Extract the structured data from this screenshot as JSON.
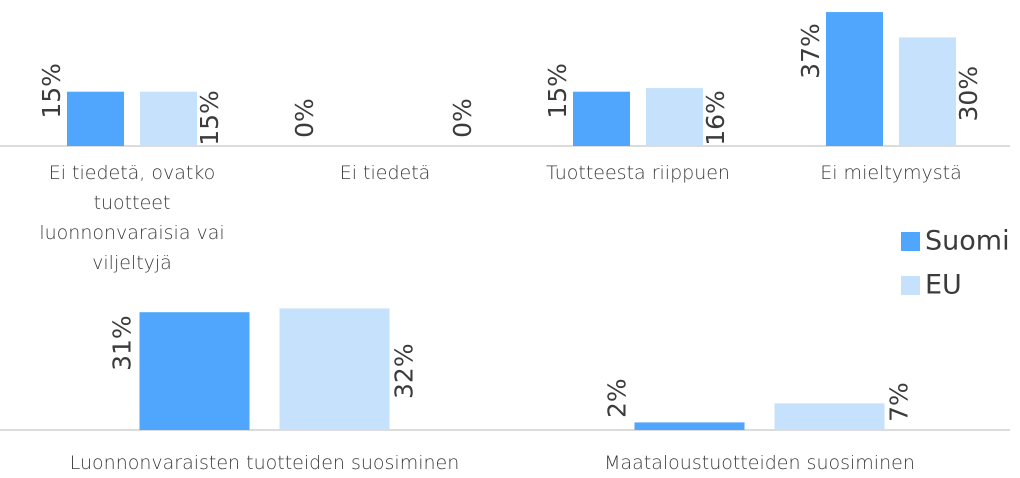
{
  "chart_data": [
    {
      "type": "bar",
      "categories": [
        "Ei tiedetä, ovatko tuotteet luonnonvaraisia vai viljeltyjä",
        "Ei tiedetä",
        "Tuotteesta riippuen",
        "Ei mieltymystä"
      ],
      "series": [
        {
          "name": "Suomi",
          "color": "#4fa6fc",
          "values": [
            15,
            0,
            15,
            37
          ],
          "value_labels": [
            "15%",
            "0%",
            "15%",
            "37%"
          ]
        },
        {
          "name": "EU",
          "color": "#c6e1fc",
          "values": [
            15,
            0,
            16,
            30
          ],
          "value_labels": [
            "15%",
            "0%",
            "16%",
            "30%"
          ]
        }
      ],
      "legend": "right"
    },
    {
      "type": "bar",
      "categories": [
        "Luonnonvaraisten tuotteiden suosiminen",
        "Maataloustuotteiden suosiminen"
      ],
      "series": [
        {
          "color": "#4fa6fc",
          "values": [
            31,
            2
          ],
          "value_labels": [
            "31%",
            "2%"
          ]
        },
        {
          "color": "#c6e1fc",
          "values": [
            32,
            7
          ],
          "value_labels": [
            "32%",
            "7%"
          ]
        }
      ]
    }
  ]
}
